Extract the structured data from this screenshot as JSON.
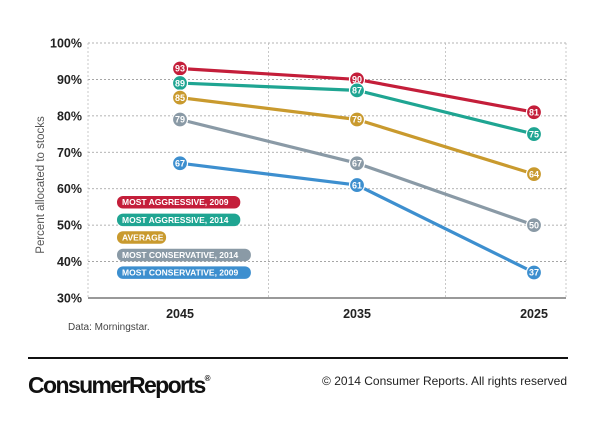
{
  "chart_data": {
    "type": "line",
    "title": "",
    "xlabel": "",
    "ylabel": "Percent allocated to stocks",
    "ylim": [
      30,
      100
    ],
    "y_ticks": [
      "30%",
      "40%",
      "50%",
      "60%",
      "70%",
      "80%",
      "90%",
      "100%"
    ],
    "categories": [
      "2045",
      "2035",
      "2025"
    ],
    "grid": true,
    "legend_position": "left",
    "series": [
      {
        "name": "MOST AGGRESSIVE, 2009",
        "color": "#c41e3a",
        "values": [
          93,
          90,
          81
        ]
      },
      {
        "name": "MOST AGGRESSIVE, 2014",
        "color": "#1fa592",
        "values": [
          89,
          87,
          75
        ]
      },
      {
        "name": "AVERAGE",
        "color": "#c99a2e",
        "values": [
          85,
          79,
          64
        ]
      },
      {
        "name": "MOST CONSERVATIVE, 2014",
        "color": "#8a9aa6",
        "values": [
          79,
          67,
          50
        ]
      },
      {
        "name": "MOST CONSERVATIVE, 2009",
        "color": "#3d8fcf",
        "values": [
          67,
          61,
          37
        ]
      }
    ]
  },
  "source_note": "Data: Morningstar.",
  "footer": {
    "logo_text": "ConsumerReports",
    "logo_mark": "®",
    "copyright": "© 2014 Consumer Reports. All rights reserved"
  }
}
